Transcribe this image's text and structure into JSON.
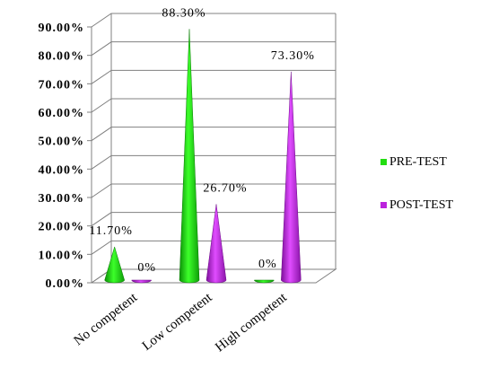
{
  "chart_data": {
    "type": "bar",
    "style": "3d-cone",
    "categories": [
      "No competent",
      "Low competent",
      "High competent"
    ],
    "series": [
      {
        "name": "PRE-TEST",
        "color": "#22dd11",
        "values": [
          11.7,
          88.3,
          0
        ],
        "labels": [
          "11.70%",
          "88.30%",
          "0%"
        ]
      },
      {
        "name": "POST-TEST",
        "color": "#bb22dd",
        "values": [
          0,
          26.7,
          73.3
        ],
        "labels": [
          "0%",
          "26.70%",
          "73.30%"
        ]
      }
    ],
    "ytick_labels": [
      "0.00%",
      "10.00%",
      "20.00%",
      "30.00%",
      "40.00%",
      "50.00%",
      "60.00%",
      "70.00%",
      "80.00%",
      "90.00%"
    ],
    "ylim": [
      0,
      90
    ],
    "grid": true,
    "legend_position": "right"
  }
}
